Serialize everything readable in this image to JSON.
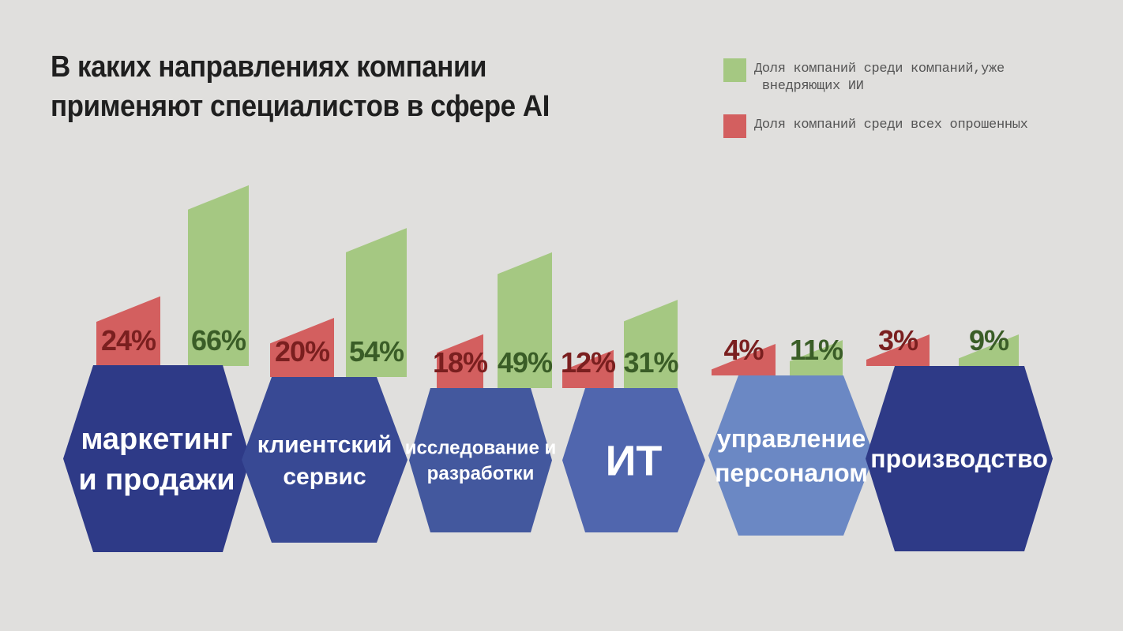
{
  "title": {
    "line1": "В каких направлениях компании",
    "line2": "применяют специалистов в сфере AI"
  },
  "legend": {
    "green": {
      "label": "Доля компаний среди компаний,уже внедряющих ИИ",
      "line1": "Доля компаний среди компаний,уже",
      "line2": " внедряющих ИИ",
      "color": "#a5c882"
    },
    "red": {
      "label": "Доля компаний среди всех опрошенных",
      "color": "#d35f5f"
    }
  },
  "chart_data": {
    "type": "bar",
    "title": "В каких направлениях компании применяют специалистов в сфере AI",
    "categories": [
      "маркетинг и продажи",
      "клиентский сервис",
      "исследование и разработки",
      "ИТ",
      "управление персоналом",
      "производство"
    ],
    "series": [
      {
        "name": "Доля компаний среди всех опрошенных",
        "values": [
          24,
          20,
          18,
          12,
          4,
          3
        ],
        "labels": [
          "24%",
          "20%",
          "18%",
          "12%",
          "4%",
          "3%"
        ],
        "color": "#d35f5f",
        "text_color": "#7a1f1f"
      },
      {
        "name": "Доля компаний среди компаний,уже внедряющих ИИ",
        "values": [
          66,
          54,
          49,
          31,
          11,
          9
        ],
        "labels": [
          "66%",
          "54%",
          "49%",
          "31%",
          "11%",
          "9%"
        ],
        "color": "#a5c882",
        "text_color": "#3a5d27"
      }
    ],
    "legend_position": "top-right",
    "grid": false
  },
  "categories_display": [
    {
      "lines": [
        "маркетинг",
        "и продажи"
      ],
      "color": "#2e3a87"
    },
    {
      "lines": [
        "клиентский",
        "сервис"
      ],
      "color": "#384994"
    },
    {
      "lines": [
        "исследование и",
        "разработки"
      ],
      "color": "#43589e"
    },
    {
      "lines": [
        "ИТ"
      ],
      "color": "#5066ae"
    },
    {
      "lines": [
        "управление",
        "персоналом"
      ],
      "color": "#6b88c4"
    },
    {
      "lines": [
        "производство"
      ],
      "color": "#2e3a87"
    }
  ]
}
